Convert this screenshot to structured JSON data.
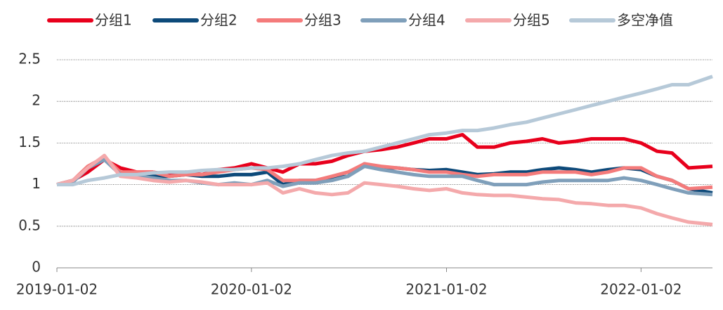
{
  "chart_data": {
    "type": "line",
    "x": [
      "2019-01-02",
      "2019-02-01",
      "2019-03-01",
      "2019-04-01",
      "2019-05-01",
      "2019-06-01",
      "2019-07-01",
      "2019-08-01",
      "2019-09-01",
      "2019-10-01",
      "2019-11-01",
      "2019-12-01",
      "2020-01-02",
      "2020-02-01",
      "2020-03-01",
      "2020-04-01",
      "2020-05-01",
      "2020-06-01",
      "2020-07-01",
      "2020-08-01",
      "2020-09-01",
      "2020-10-01",
      "2020-11-01",
      "2020-12-01",
      "2021-01-02",
      "2021-02-01",
      "2021-03-01",
      "2021-04-01",
      "2021-05-01",
      "2021-06-01",
      "2021-07-01",
      "2021-08-01",
      "2021-09-01",
      "2021-10-01",
      "2021-11-01",
      "2021-12-01",
      "2022-01-02",
      "2022-02-01",
      "2022-03-01",
      "2022-04-01",
      "2022-05-16"
    ],
    "series": [
      {
        "name": "分组1",
        "color": "#e8001c",
        "values": [
          1.0,
          1.05,
          1.15,
          1.3,
          1.2,
          1.15,
          1.15,
          1.12,
          1.15,
          1.12,
          1.18,
          1.2,
          1.25,
          1.2,
          1.15,
          1.25,
          1.25,
          1.28,
          1.35,
          1.4,
          1.42,
          1.45,
          1.5,
          1.55,
          1.55,
          1.6,
          1.45,
          1.45,
          1.5,
          1.52,
          1.55,
          1.5,
          1.52,
          1.55,
          1.55,
          1.55,
          1.5,
          1.4,
          1.38,
          1.2,
          1.22
        ]
      },
      {
        "name": "分组2",
        "color": "#0d4a7a",
        "values": [
          1.0,
          1.05,
          1.2,
          1.3,
          1.15,
          1.12,
          1.1,
          1.1,
          1.12,
          1.1,
          1.1,
          1.12,
          1.12,
          1.15,
          1.0,
          1.05,
          1.05,
          1.08,
          1.1,
          1.25,
          1.2,
          1.2,
          1.18,
          1.17,
          1.18,
          1.15,
          1.12,
          1.13,
          1.15,
          1.15,
          1.18,
          1.2,
          1.18,
          1.15,
          1.18,
          1.2,
          1.18,
          1.1,
          1.05,
          0.95,
          0.9
        ]
      },
      {
        "name": "分组3",
        "color": "#f47b7b",
        "values": [
          1.0,
          1.05,
          1.22,
          1.33,
          1.15,
          1.15,
          1.15,
          1.1,
          1.12,
          1.12,
          1.15,
          1.18,
          1.2,
          1.18,
          1.05,
          1.05,
          1.05,
          1.1,
          1.15,
          1.25,
          1.22,
          1.2,
          1.18,
          1.15,
          1.15,
          1.12,
          1.1,
          1.12,
          1.12,
          1.12,
          1.15,
          1.15,
          1.15,
          1.12,
          1.15,
          1.2,
          1.2,
          1.1,
          1.05,
          0.95,
          0.97
        ]
      },
      {
        "name": "分组4",
        "color": "#7f9fba",
        "values": [
          1.0,
          1.03,
          1.2,
          1.3,
          1.12,
          1.1,
          1.08,
          1.05,
          1.05,
          1.02,
          1.0,
          1.02,
          1.0,
          1.05,
          0.98,
          1.02,
          1.02,
          1.05,
          1.1,
          1.22,
          1.18,
          1.15,
          1.12,
          1.1,
          1.1,
          1.1,
          1.05,
          1.0,
          1.0,
          1.0,
          1.03,
          1.05,
          1.05,
          1.05,
          1.05,
          1.08,
          1.05,
          1.0,
          0.95,
          0.9,
          0.88
        ]
      },
      {
        "name": "分组5",
        "color": "#f4a9ab",
        "values": [
          1.0,
          1.05,
          1.2,
          1.35,
          1.1,
          1.08,
          1.05,
          1.03,
          1.05,
          1.03,
          1.0,
          1.0,
          1.0,
          1.02,
          0.9,
          0.95,
          0.9,
          0.88,
          0.9,
          1.02,
          1.0,
          0.98,
          0.95,
          0.93,
          0.95,
          0.9,
          0.88,
          0.87,
          0.87,
          0.85,
          0.83,
          0.82,
          0.78,
          0.77,
          0.75,
          0.75,
          0.72,
          0.65,
          0.6,
          0.55,
          0.52
        ]
      },
      {
        "name": "多空净值",
        "color": "#b6c9d8",
        "values": [
          1.0,
          1.0,
          1.05,
          1.08,
          1.12,
          1.12,
          1.14,
          1.15,
          1.15,
          1.17,
          1.18,
          1.18,
          1.2,
          1.2,
          1.22,
          1.25,
          1.3,
          1.35,
          1.38,
          1.4,
          1.45,
          1.5,
          1.55,
          1.6,
          1.62,
          1.65,
          1.65,
          1.68,
          1.72,
          1.75,
          1.8,
          1.85,
          1.9,
          1.95,
          2.0,
          2.05,
          2.1,
          2.15,
          2.2,
          2.2,
          2.3
        ]
      }
    ],
    "xlim": [
      "2019-01-02",
      "2022-05-16"
    ],
    "xticks": [
      "2019-01-02",
      "2020-01-02",
      "2021-01-02",
      "2022-01-02"
    ],
    "ylim": [
      0,
      2.5
    ],
    "yticks": [
      0,
      0.5,
      1,
      1.5,
      2,
      2.5
    ],
    "grid": true,
    "legend": "top"
  }
}
